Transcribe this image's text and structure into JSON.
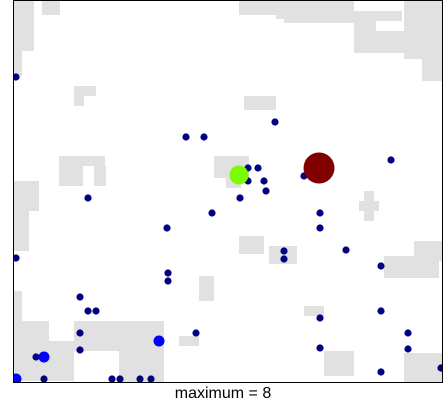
{
  "caption": "maximum = 8",
  "colors": {
    "land_patch": "#e1e1e1",
    "background": "#ffffff",
    "border": "#000000",
    "count_1": "#000080",
    "count_2": "#0000ff",
    "count_3": "#7cfc00",
    "count_8": "#800000"
  },
  "sites": [
    {
      "count": 1
    },
    {
      "count": 1
    },
    {
      "count": 1
    },
    {
      "count": 1
    },
    {
      "count": 1
    },
    {
      "count": 1
    },
    {
      "count": 1
    },
    {
      "count": 1
    },
    {
      "count": 1
    },
    {
      "count": 1
    },
    {
      "count": 1
    },
    {
      "count": 1
    },
    {
      "count": 1
    },
    {
      "count": 1
    },
    {
      "count": 1
    },
    {
      "count": 1
    },
    {
      "count": 1
    },
    {
      "count": 1
    },
    {
      "count": 1
    },
    {
      "count": 1
    },
    {
      "count": 1
    },
    {
      "count": 1
    },
    {
      "count": 1
    },
    {
      "count": 1
    },
    {
      "count": 1
    },
    {
      "count": 1
    },
    {
      "count": 1
    },
    {
      "count": 1
    },
    {
      "count": 1
    },
    {
      "count": 1
    },
    {
      "count": 1
    },
    {
      "count": 1
    },
    {
      "count": 1
    },
    {
      "count": 1
    },
    {
      "count": 1
    },
    {
      "count": 1
    },
    {
      "count": 1
    },
    {
      "count": 1
    },
    {
      "count": 1
    },
    {
      "count": 1
    },
    {
      "count": 1
    },
    {
      "count": 1
    },
    {
      "count": 1
    },
    {
      "count": 1
    },
    {
      "count": 1
    },
    {
      "count": 1
    },
    {
      "count": 1
    },
    {
      "count": 1
    },
    {
      "count": 2
    },
    {
      "count": 2
    },
    {
      "count": 2
    },
    {
      "count": 3
    },
    {
      "count": 8
    }
  ]
}
